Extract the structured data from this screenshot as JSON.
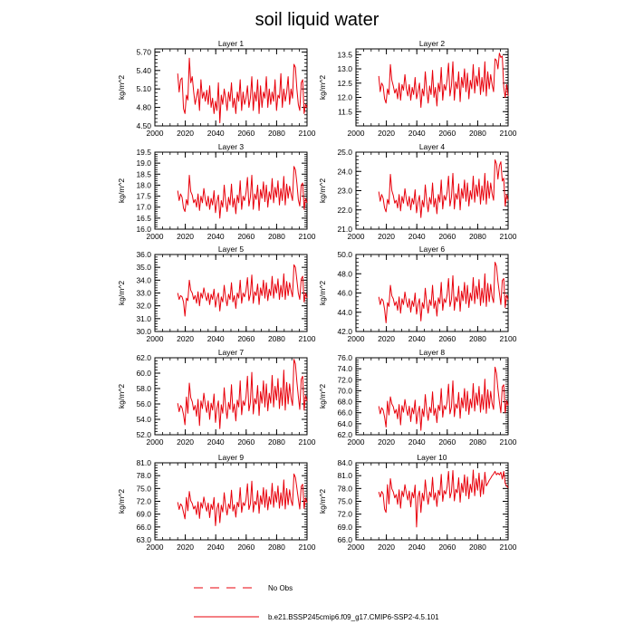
{
  "figure_title": "soil liquid water",
  "colors": {
    "model": "#e8000b",
    "obs": "#e8000b",
    "axis": "#000000"
  },
  "chart_data": [
    {
      "type": "line",
      "title": "Layer 1",
      "ylabel": "kg/m^2",
      "xlim": [
        2000,
        2100
      ],
      "ylim": [
        4.5,
        5.75
      ],
      "xticks": [
        2000,
        2020,
        2040,
        2060,
        2080,
        2100
      ],
      "yticks": [
        4.5,
        4.8,
        5.1,
        5.4,
        5.7
      ],
      "ytick_labels": [
        "4.50",
        "4.80",
        "5.10",
        "5.40",
        "5.70"
      ]
    },
    {
      "type": "line",
      "title": "Layer 2",
      "ylabel": "kg/m^2",
      "xlim": [
        2000,
        2100
      ],
      "ylim": [
        11.0,
        13.7
      ],
      "xticks": [
        2000,
        2020,
        2040,
        2060,
        2080,
        2100
      ],
      "yticks": [
        11.5,
        12.0,
        12.5,
        13.0,
        13.5
      ],
      "ytick_labels": [
        "11.5",
        "12.0",
        "12.5",
        "13.0",
        "13.5"
      ]
    },
    {
      "type": "line",
      "title": "Layer 3",
      "ylabel": "kg/m^2",
      "xlim": [
        2000,
        2100
      ],
      "ylim": [
        16.0,
        19.5
      ],
      "xticks": [
        2000,
        2020,
        2040,
        2060,
        2080,
        2100
      ],
      "yticks": [
        16.0,
        16.5,
        17.0,
        17.5,
        18.0,
        18.5,
        19.0,
        19.5
      ],
      "ytick_labels": [
        "16.0",
        "16.5",
        "17.0",
        "17.5",
        "18.0",
        "18.5",
        "19.0",
        "19.5"
      ]
    },
    {
      "type": "line",
      "title": "Layer 4",
      "ylabel": "kg/m^2",
      "xlim": [
        2000,
        2100
      ],
      "ylim": [
        21.0,
        25.0
      ],
      "xticks": [
        2000,
        2020,
        2040,
        2060,
        2080,
        2100
      ],
      "yticks": [
        21.0,
        22.0,
        23.0,
        24.0,
        25.0
      ],
      "ytick_labels": [
        "21.0",
        "22.0",
        "23.0",
        "24.0",
        "25.0"
      ]
    },
    {
      "type": "line",
      "title": "Layer 5",
      "ylabel": "kg/m^2",
      "xlim": [
        2000,
        2100
      ],
      "ylim": [
        30.0,
        36.0
      ],
      "xticks": [
        2000,
        2020,
        2040,
        2060,
        2080,
        2100
      ],
      "yticks": [
        30.0,
        31.0,
        32.0,
        33.0,
        34.0,
        35.0,
        36.0
      ],
      "ytick_labels": [
        "30.0",
        "31.0",
        "32.0",
        "33.0",
        "34.0",
        "35.0",
        "36.0"
      ]
    },
    {
      "type": "line",
      "title": "Layer 6",
      "ylabel": "kg/m^2",
      "xlim": [
        2000,
        2100
      ],
      "ylim": [
        42.0,
        50.0
      ],
      "xticks": [
        2000,
        2020,
        2040,
        2060,
        2080,
        2100
      ],
      "yticks": [
        42.0,
        44.0,
        46.0,
        48.0,
        50.0
      ],
      "ytick_labels": [
        "42.0",
        "44.0",
        "46.0",
        "48.0",
        "50.0"
      ]
    },
    {
      "type": "line",
      "title": "Layer 7",
      "ylabel": "kg/m^2",
      "xlim": [
        2000,
        2100
      ],
      "ylim": [
        52.0,
        62.0
      ],
      "xticks": [
        2000,
        2020,
        2040,
        2060,
        2080,
        2100
      ],
      "yticks": [
        52.0,
        54.0,
        56.0,
        58.0,
        60.0,
        62.0
      ],
      "ytick_labels": [
        "52.0",
        "54.0",
        "56.0",
        "58.0",
        "60.0",
        "62.0"
      ]
    },
    {
      "type": "line",
      "title": "Layer 8",
      "ylabel": "kg/m^2",
      "xlim": [
        2000,
        2100
      ],
      "ylim": [
        62.0,
        76.0
      ],
      "xticks": [
        2000,
        2020,
        2040,
        2060,
        2080,
        2100
      ],
      "yticks": [
        62.0,
        64.0,
        66.0,
        68.0,
        70.0,
        72.0,
        74.0,
        76.0
      ],
      "ytick_labels": [
        "62.0",
        "64.0",
        "66.0",
        "68.0",
        "70.0",
        "72.0",
        "74.0",
        "76.0"
      ]
    },
    {
      "type": "line",
      "title": "Layer 9",
      "ylabel": "kg/m^2",
      "xlim": [
        2000,
        2100
      ],
      "ylim": [
        63.0,
        81.0
      ],
      "xticks": [
        2000,
        2020,
        2040,
        2060,
        2080,
        2100
      ],
      "yticks": [
        63.0,
        66.0,
        69.0,
        72.0,
        75.0,
        78.0,
        81.0
      ],
      "ytick_labels": [
        "63.0",
        "66.0",
        "69.0",
        "72.0",
        "75.0",
        "78.0",
        "81.0"
      ]
    },
    {
      "type": "line",
      "title": "Layer 10",
      "ylabel": "kg/m^2",
      "xlim": [
        2000,
        2100
      ],
      "ylim": [
        66.0,
        84.0
      ],
      "xticks": [
        2000,
        2020,
        2040,
        2060,
        2080,
        2100
      ],
      "yticks": [
        66.0,
        69.0,
        72.0,
        75.0,
        78.0,
        81.0,
        84.0
      ],
      "ytick_labels": [
        "66.0",
        "69.0",
        "72.0",
        "75.0",
        "78.0",
        "81.0",
        "84.0"
      ]
    }
  ],
  "series_years": [
    2015,
    2100
  ],
  "series_values": {
    "Layer 1": [
      5.35,
      5.05,
      5.25,
      5.28,
      4.78,
      4.7,
      5.0,
      4.92,
      5.6,
      5.2,
      5.3,
      5.05,
      4.85,
      4.98,
      5.1,
      4.75,
      5.25,
      4.95,
      5.05,
      4.9,
      5.08,
      4.85,
      5.15,
      4.8,
      4.95,
      4.7,
      4.9,
      4.75,
      5.2,
      4.55,
      5.0,
      4.85,
      5.1,
      4.95,
      4.75,
      5.05,
      4.9,
      5.2,
      4.8,
      4.95,
      4.7,
      5.05,
      4.9,
      5.25,
      4.75,
      5.05,
      4.85,
      4.95,
      5.15,
      4.8,
      4.95,
      5.3,
      4.75,
      5.05,
      4.9,
      5.25,
      4.7,
      5.15,
      4.8,
      5.05,
      4.95,
      5.3,
      4.8,
      5.1,
      4.85,
      5.05,
      4.9,
      5.25,
      4.75,
      5.0,
      4.95,
      5.35,
      4.8,
      5.1,
      4.9,
      5.05,
      5.3,
      4.85,
      5.1,
      4.95,
      5.5,
      5.45,
      5.1,
      4.85,
      4.75,
      5.2,
      5.25,
      4.7,
      4.85,
      4.8
    ],
    "Layer 2": [
      12.75,
      12.2,
      12.5,
      12.4,
      11.95,
      11.8,
      12.3,
      12.1,
      13.15,
      12.6,
      12.4,
      12.15,
      12.3,
      11.95,
      12.5,
      11.9,
      12.45,
      12.25,
      12.8,
      12.3,
      12.05,
      12.45,
      11.9,
      12.35,
      12.1,
      12.7,
      11.95,
      12.2,
      12.5,
      11.65,
      12.3,
      12.05,
      12.9,
      12.25,
      11.8,
      12.4,
      12.1,
      12.95,
      12.0,
      12.35,
      11.7,
      12.5,
      12.2,
      13.05,
      11.9,
      12.45,
      12.25,
      12.6,
      13.2,
      12.05,
      12.4,
      13.25,
      11.9,
      12.55,
      12.3,
      12.9,
      11.85,
      12.7,
      12.35,
      13.0,
      12.2,
      12.85,
      11.95,
      12.6,
      12.3,
      13.15,
      12.15,
      12.75,
      12.4,
      13.05,
      12.1,
      12.7,
      12.2,
      13.25,
      12.05,
      12.9,
      12.3,
      12.8,
      12.45,
      12.2,
      13.35,
      13.3,
      13.0,
      13.55,
      13.4,
      13.45,
      12.35,
      12.0,
      12.45,
      12.05
    ],
    "Layer 3": [
      17.75,
      17.3,
      17.6,
      17.45,
      16.95,
      16.8,
      17.35,
      17.1,
      18.45,
      17.7,
      17.55,
      17.2,
      17.35,
      17.0,
      17.6,
      16.85,
      17.5,
      17.2,
      17.85,
      17.35,
      17.05,
      17.5,
      16.9,
      17.4,
      17.1,
      17.75,
      16.75,
      17.25,
      17.55,
      16.5,
      17.3,
      17.0,
      18.0,
      17.25,
      16.8,
      17.45,
      17.1,
      18.05,
      17.0,
      17.4,
      16.7,
      17.55,
      17.2,
      18.2,
      16.9,
      17.5,
      17.3,
      17.65,
      18.35,
      17.05,
      17.45,
      18.45,
      16.9,
      17.6,
      17.35,
      18.0,
      16.85,
      17.8,
      17.4,
      18.15,
      17.25,
      18.0,
      17.0,
      17.7,
      17.35,
      18.3,
      17.2,
      17.9,
      17.45,
      18.2,
      17.1,
      17.85,
      17.3,
      18.4,
      17.1,
      18.05,
      17.4,
      17.95,
      17.6,
      17.3,
      18.85,
      18.7,
      18.1,
      17.35,
      17.05,
      18.0,
      18.1,
      16.9,
      17.4,
      17.2
    ],
    "Layer 4": [
      22.95,
      22.45,
      22.8,
      22.6,
      22.1,
      21.9,
      22.55,
      22.3,
      23.85,
      23.0,
      22.75,
      22.35,
      22.5,
      22.1,
      22.8,
      21.95,
      22.7,
      22.35,
      23.1,
      22.55,
      22.2,
      22.7,
      22.0,
      22.6,
      22.3,
      23.05,
      21.85,
      22.4,
      22.75,
      21.6,
      22.5,
      22.15,
      23.3,
      22.45,
      21.9,
      22.65,
      22.3,
      23.4,
      22.15,
      22.6,
      21.8,
      22.8,
      22.4,
      23.55,
      22.05,
      22.75,
      22.5,
      22.9,
      23.75,
      22.2,
      22.65,
      23.9,
      22.05,
      22.85,
      22.55,
      23.35,
      22.0,
      23.1,
      22.6,
      23.55,
      22.45,
      23.4,
      22.2,
      23.0,
      22.55,
      23.75,
      22.4,
      23.3,
      22.7,
      23.6,
      22.3,
      23.25,
      22.5,
      23.9,
      22.3,
      23.5,
      22.6,
      23.4,
      22.85,
      22.5,
      24.6,
      24.4,
      23.6,
      24.3,
      24.5,
      23.5,
      23.65,
      22.2,
      22.8,
      22.5
    ],
    "Layer 5": [
      33.0,
      32.5,
      32.8,
      32.7,
      32.3,
      31.2,
      32.6,
      32.4,
      34.0,
      33.2,
      33.0,
      32.5,
      32.8,
      32.2,
      33.1,
      32.0,
      33.0,
      32.6,
      33.4,
      32.8,
      32.4,
      33.0,
      32.1,
      32.9,
      32.5,
      33.3,
      31.9,
      32.6,
      33.0,
      31.6,
      32.7,
      32.3,
      33.6,
      32.6,
      32.0,
      32.9,
      32.5,
      33.8,
      32.3,
      32.8,
      31.8,
      33.0,
      32.6,
      34.0,
      32.2,
      33.0,
      32.7,
      33.2,
      34.2,
      32.4,
      32.9,
      34.4,
      32.2,
      33.1,
      32.8,
      33.7,
      32.1,
      33.4,
      32.8,
      34.0,
      32.6,
      33.8,
      32.4,
      33.3,
      32.8,
      34.3,
      32.6,
      33.7,
      33.0,
      34.1,
      32.5,
      33.6,
      32.7,
      34.5,
      32.5,
      33.9,
      32.8,
      33.8,
      33.2,
      32.7,
      35.2,
      35.0,
      34.0,
      33.0,
      32.5,
      34.1,
      34.3,
      32.3,
      33.0,
      32.6
    ],
    "Layer 6": [
      45.6,
      44.8,
      45.4,
      45.2,
      44.3,
      42.9,
      45.0,
      44.6,
      46.8,
      45.7,
      45.4,
      44.7,
      45.1,
      44.2,
      45.6,
      43.9,
      45.4,
      44.8,
      46.1,
      45.1,
      44.5,
      45.4,
      44.0,
      45.2,
      44.6,
      46.0,
      43.8,
      44.8,
      45.4,
      43.1,
      45.0,
      44.4,
      46.5,
      44.9,
      43.9,
      45.3,
      44.7,
      46.8,
      44.4,
      45.2,
      43.6,
      45.5,
      44.9,
      47.1,
      44.2,
      45.4,
      45.0,
      45.8,
      47.5,
      44.6,
      45.3,
      47.8,
      44.2,
      45.6,
      45.1,
      46.7,
      44.1,
      46.2,
      45.2,
      47.1,
      44.9,
      46.8,
      44.5,
      46.0,
      45.2,
      47.6,
      44.9,
      46.7,
      45.4,
      47.4,
      44.7,
      46.5,
      45.0,
      48.0,
      44.6,
      47.0,
      45.1,
      46.9,
      45.6,
      45.0,
      49.2,
      48.8,
      47.2,
      46.0,
      44.8,
      47.3,
      47.5,
      44.5,
      45.8,
      45.3
    ],
    "Layer 7": [
      56.1,
      55.0,
      55.8,
      55.5,
      54.6,
      53.3,
      56.9,
      54.8,
      58.7,
      56.8,
      56.3,
      55.2,
      55.8,
      54.4,
      56.6,
      53.2,
      56.4,
      55.4,
      57.4,
      55.9,
      54.9,
      56.4,
      54.0,
      56.1,
      55.2,
      57.3,
      53.6,
      55.4,
      56.4,
      52.8,
      55.9,
      54.8,
      58.1,
      55.6,
      54.1,
      56.2,
      55.3,
      58.5,
      54.9,
      56.0,
      53.8,
      56.5,
      55.6,
      59.0,
      54.6,
      56.4,
      55.8,
      56.9,
      59.6,
      55.1,
      56.2,
      60.1,
      54.7,
      56.7,
      56.0,
      58.4,
      54.5,
      57.6,
      56.1,
      59.0,
      55.6,
      58.6,
      55.1,
      57.4,
      56.1,
      59.7,
      55.6,
      58.3,
      56.5,
      59.3,
      55.4,
      58.1,
      55.8,
      60.4,
      55.2,
      58.8,
      56.0,
      58.6,
      56.8,
      55.8,
      61.8,
      61.2,
      58.9,
      57.0,
      55.3,
      59.2,
      59.6,
      55.2,
      57.1,
      56.4
    ],
    "Layer 8": [
      67.2,
      65.8,
      66.9,
      66.5,
      65.2,
      63.4,
      68.1,
      65.6,
      68.9,
      67.6,
      67.1,
      65.9,
      66.6,
      64.9,
      67.5,
      63.8,
      67.3,
      66.1,
      68.4,
      66.7,
      65.5,
      67.2,
      64.4,
      66.9,
      65.8,
      68.3,
      64.0,
      66.0,
      67.2,
      62.8,
      66.7,
      65.3,
      69.3,
      66.4,
      64.6,
      67.0,
      66.0,
      69.8,
      65.5,
      66.8,
      64.2,
      67.4,
      66.4,
      70.4,
      65.2,
      67.3,
      66.6,
      67.9,
      71.2,
      65.8,
      67.0,
      71.8,
      65.3,
      67.6,
      66.8,
      69.7,
      65.0,
      68.7,
      66.9,
      70.4,
      66.3,
      69.9,
      65.7,
      68.5,
      66.9,
      71.3,
      66.3,
      69.6,
      67.4,
      70.8,
      66.1,
      69.3,
      66.6,
      72.1,
      65.9,
      70.2,
      66.8,
      69.9,
      67.7,
      66.6,
      74.3,
      73.2,
      70.3,
      68.0,
      66.0,
      70.7,
      71.1,
      66.0,
      68.2,
      67.3
    ],
    "Layer 9": [
      71.8,
      70.1,
      71.4,
      70.9,
      69.4,
      67.9,
      72.9,
      69.8,
      74.3,
      72.1,
      71.5,
      70.2,
      70.9,
      68.9,
      71.9,
      68.0,
      71.7,
      70.4,
      73.0,
      71.1,
      69.7,
      71.6,
      68.2,
      71.3,
      70.1,
      72.9,
      66.3,
      70.3,
      71.6,
      67.0,
      71.1,
      69.5,
      74.0,
      70.8,
      68.8,
      71.4,
      70.3,
      74.6,
      69.7,
      71.2,
      68.3,
      71.8,
      70.7,
      75.2,
      69.4,
      71.7,
      71.0,
      72.4,
      76.1,
      70.1,
      71.4,
      76.7,
      69.5,
      72.0,
      71.2,
      74.5,
      69.2,
      73.3,
      71.3,
      75.2,
      70.6,
      74.7,
      70.0,
      73.1,
      71.3,
      76.2,
      70.6,
      74.3,
      71.8,
      75.6,
      70.4,
      74.0,
      71.0,
      77.0,
      70.2,
      75.0,
      71.2,
      74.7,
      72.2,
      71.0,
      78.4,
      77.6,
      75.1,
      72.6,
      70.2,
      75.5,
      76.0,
      70.3,
      72.8,
      71.7
    ],
    "Layer 10": [
      77.2,
      76.0,
      77.3,
      76.7,
      73.2,
      72.4,
      78.9,
      74.4,
      80.3,
      77.9,
      77.2,
      75.8,
      76.6,
      74.3,
      77.7,
      73.4,
      77.4,
      76.1,
      78.9,
      76.9,
      75.3,
      77.4,
      73.7,
      77.1,
      75.8,
      78.8,
      69.0,
      76.0,
      77.4,
      72.4,
      76.9,
      75.1,
      80.0,
      76.5,
      74.3,
      77.2,
      76.0,
      80.6,
      75.3,
      77.0,
      73.8,
      77.6,
      76.4,
      81.3,
      75.0,
      77.5,
      76.7,
      78.3,
      82.0,
      75.8,
      77.2,
      82.2,
      75.1,
      77.8,
      77.0,
      80.5,
      74.8,
      79.2,
      77.1,
      81.2,
      76.3,
      80.7,
      75.6,
      79.0,
      77.1,
      82.3,
      76.3,
      80.3,
      77.6,
      81.6,
      76.1,
      80.0,
      76.7,
      81.8,
      78.6,
      79.2,
      79.9,
      80.4,
      81.0,
      81.4,
      82.0,
      81.2,
      81.6,
      81.2,
      81.8,
      80.2,
      82.0,
      79.2,
      78.6,
      78.2
    ]
  },
  "legend": {
    "obs_label": "No Obs",
    "model_label": "b.e21.BSSP245cmip6.f09_g17.CMIP6-SSP2-4.5.101"
  }
}
